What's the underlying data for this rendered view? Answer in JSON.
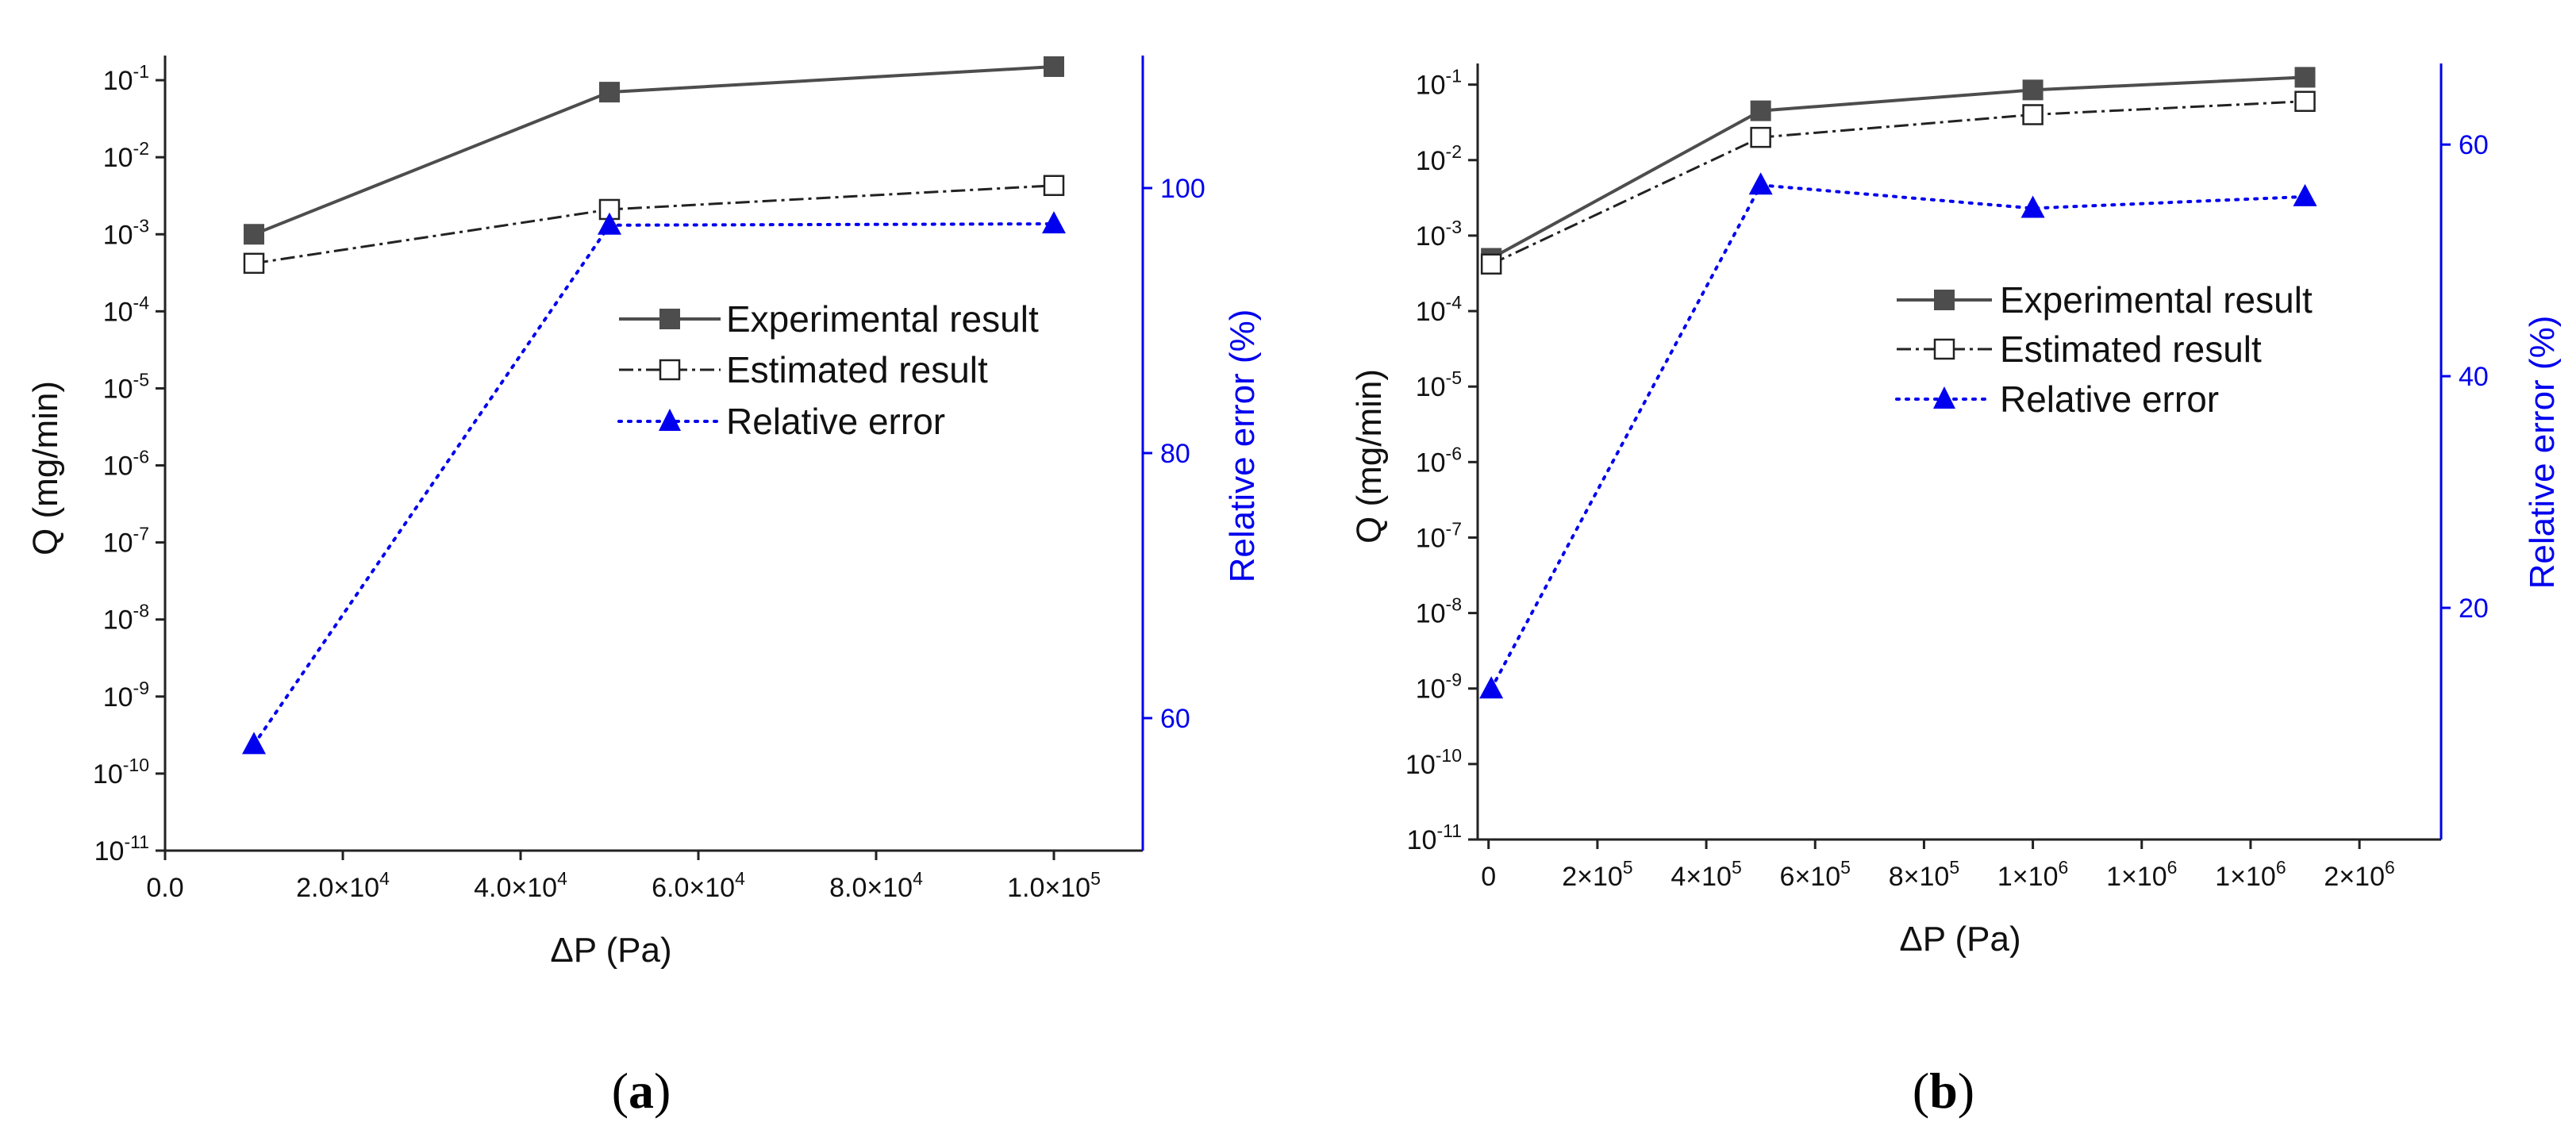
{
  "chart_data": [
    {
      "type": "line",
      "panel": "a",
      "caption_open": "(",
      "caption_letter": "a",
      "caption_close": ")",
      "xlabel": "ΔP (Pa)",
      "ylabel_left": "Q (mg/min)",
      "ylabel_right": "Relative error (%)",
      "x_range": [
        0,
        110000
      ],
      "x_ticks": [
        {
          "value": 0,
          "mant": "0.0",
          "exp": ""
        },
        {
          "value": 20000,
          "mant": "2.0×10",
          "exp": "4"
        },
        {
          "value": 40000,
          "mant": "4.0×10",
          "exp": "4"
        },
        {
          "value": 60000,
          "mant": "6.0×10",
          "exp": "4"
        },
        {
          "value": 80000,
          "mant": "8.0×10",
          "exp": "4"
        },
        {
          "value": 100000,
          "mant": "1.0×10",
          "exp": "5"
        }
      ],
      "y_left": {
        "scale": "log",
        "range_exp": [
          -11,
          -0.68
        ],
        "ticks_exp": [
          -11,
          -10,
          -9,
          -8,
          -7,
          -6,
          -5,
          -4,
          -3,
          -2,
          -1
        ],
        "base": "10"
      },
      "y_right": {
        "scale": "linear",
        "range": [
          50,
          110
        ],
        "ticks": [
          60,
          80,
          100
        ]
      },
      "legend": [
        "Experimental result",
        "Estimated result",
        "Relative error"
      ],
      "series": [
        {
          "name": "Experimental result",
          "axis": "left",
          "x": [
            10000,
            50000,
            100000
          ],
          "y": [
            0.001,
            0.07,
            0.15
          ]
        },
        {
          "name": "Estimated result",
          "axis": "left",
          "x": [
            10000,
            50000,
            100000
          ],
          "y": [
            0.00042,
            0.0021,
            0.0043
          ]
        },
        {
          "name": "Relative error",
          "axis": "right",
          "x": [
            10000,
            50000,
            100000
          ],
          "y": [
            58,
            97.2,
            97.3
          ]
        }
      ],
      "colors": {
        "experimental": "#4d4d4d",
        "estimated": "#222222",
        "error": "#0000ee"
      }
    },
    {
      "type": "line",
      "panel": "b",
      "caption_open": "(",
      "caption_letter": "b",
      "caption_close": ")",
      "xlabel": "ΔP (Pa)",
      "ylabel_left": "Q (mg/min)",
      "ylabel_right": "Relative error (%)",
      "x_range": [
        -20000,
        1750000
      ],
      "x_ticks": [
        {
          "value": 0,
          "mant": "0",
          "exp": ""
        },
        {
          "value": 200000,
          "mant": "2×10",
          "exp": "5"
        },
        {
          "value": 400000,
          "mant": "4×10",
          "exp": "5"
        },
        {
          "value": 600000,
          "mant": "6×10",
          "exp": "5"
        },
        {
          "value": 800000,
          "mant": "8×10",
          "exp": "5"
        },
        {
          "value": 1000000,
          "mant": "1×10",
          "exp": "6"
        },
        {
          "value": 1200000,
          "mant": "1×10",
          "exp": "6"
        },
        {
          "value": 1400000,
          "mant": "1×10",
          "exp": "6"
        },
        {
          "value": 1600000,
          "mant": "2×10",
          "exp": "6"
        }
      ],
      "y_left": {
        "scale": "log",
        "range_exp": [
          -11,
          -0.72
        ],
        "ticks_exp": [
          -11,
          -10,
          -9,
          -8,
          -7,
          -6,
          -5,
          -4,
          -3,
          -2,
          -1
        ],
        "base": "10"
      },
      "y_right": {
        "scale": "linear",
        "range": [
          0,
          67
        ],
        "ticks": [
          20,
          40,
          60
        ]
      },
      "legend": [
        "Experimental result",
        "Estimated result",
        "Relative error"
      ],
      "series": [
        {
          "name": "Experimental result",
          "axis": "left",
          "x": [
            5000,
            500000,
            1000000,
            1500000
          ],
          "y": [
            0.0005,
            0.045,
            0.085,
            0.125
          ]
        },
        {
          "name": "Estimated result",
          "axis": "left",
          "x": [
            5000,
            500000,
            1000000,
            1500000
          ],
          "y": [
            0.00042,
            0.02,
            0.04,
            0.06
          ]
        },
        {
          "name": "Relative error",
          "axis": "right",
          "x": [
            5000,
            500000,
            1000000,
            1500000
          ],
          "y": [
            13,
            56.5,
            54.5,
            55.5
          ]
        }
      ],
      "colors": {
        "experimental": "#4d4d4d",
        "estimated": "#222222",
        "error": "#0000ee"
      }
    }
  ]
}
